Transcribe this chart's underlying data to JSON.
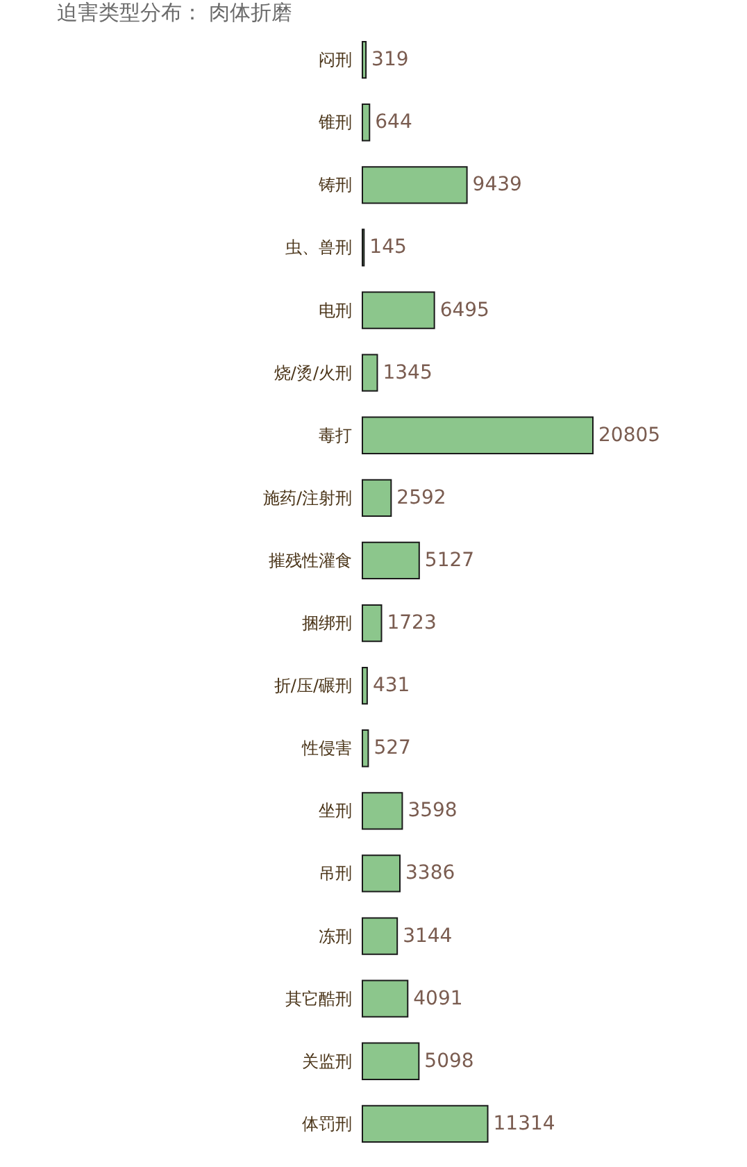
{
  "chart_data": {
    "type": "bar",
    "orientation": "horizontal",
    "title": "迫害类型分布：  肉体折磨",
    "categories": [
      "闷刑",
      "锥刑",
      "铸刑",
      "虫、兽刑",
      "电刑",
      "烧/烫/火刑",
      "毒打",
      "施药/注射刑",
      "摧残性灌食",
      "捆绑刑",
      "折/压/碾刑",
      "性侵害",
      "坐刑",
      "吊刑",
      "冻刑",
      "其它酷刑",
      "关监刑",
      "体罚刑"
    ],
    "values": [
      319,
      644,
      9439,
      145,
      6495,
      1345,
      20805,
      2592,
      5127,
      1723,
      431,
      527,
      3598,
      3386,
      3144,
      4091,
      5098,
      11314
    ],
    "color": "#8cc68c",
    "data_labels": true,
    "grid": false
  }
}
